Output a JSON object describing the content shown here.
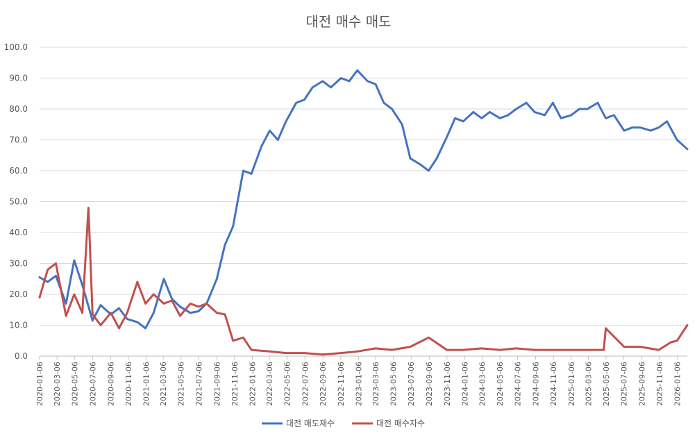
{
  "chart_data": {
    "type": "line",
    "title": "대전 매수 매도",
    "xlabel": "",
    "ylabel": "",
    "ylim": [
      0,
      100
    ],
    "y_ticks": [
      "0.0",
      "10.0",
      "20.0",
      "30.0",
      "40.0",
      "50.0",
      "60.0",
      "70.0",
      "80.0",
      "90.0",
      "100.0"
    ],
    "x_ticks": [
      "2020-01-06",
      "2020-03-06",
      "2020-05-06",
      "2020-07-06",
      "2020-09-06",
      "2020-11-06",
      "2021-01-06",
      "2021-03-06",
      "2021-05-06",
      "2021-07-06",
      "2021-09-06",
      "2021-11-06",
      "2022-01-06",
      "2022-03-06",
      "2022-05-06",
      "2022-07-06",
      "2022-09-06",
      "2022-11-06",
      "2023-01-06",
      "2023-03-06",
      "2023-05-06",
      "2023-07-06",
      "2023-09-06",
      "2023-11-06",
      "2024-01-06",
      "2024-03-06",
      "2024-05-06",
      "2024-07-06",
      "2024-09-06",
      "2024-11-06",
      "2025-01-06",
      "2025-03-06",
      "2025-05-06",
      "2025-07-06",
      "2025-09-06",
      "2025-11-06",
      "2026-01-06"
    ],
    "x_range": [
      "2020-01-06",
      "2026-02-09"
    ],
    "grid": true,
    "legend_position": "bottom",
    "series": [
      {
        "name": "대전 매도재수",
        "color": "#4472c4",
        "x": [
          "2020-01-06",
          "2020-02-03",
          "2020-03-02",
          "2020-04-06",
          "2020-05-04",
          "2020-06-01",
          "2020-07-06",
          "2020-08-03",
          "2020-09-07",
          "2020-10-05",
          "2020-11-02",
          "2020-12-07",
          "2021-01-04",
          "2021-02-01",
          "2021-03-08",
          "2021-04-05",
          "2021-05-03",
          "2021-06-07",
          "2021-07-05",
          "2021-08-02",
          "2021-09-06",
          "2021-10-04",
          "2021-11-01",
          "2021-12-06",
          "2022-01-03",
          "2022-02-07",
          "2022-03-07",
          "2022-04-04",
          "2022-05-02",
          "2022-06-06",
          "2022-07-04",
          "2022-08-01",
          "2022-09-05",
          "2022-10-03",
          "2022-11-07",
          "2022-12-05",
          "2023-01-02",
          "2023-02-06",
          "2023-03-06",
          "2023-04-03",
          "2023-05-01",
          "2023-06-05",
          "2023-07-03",
          "2023-08-07",
          "2023-09-04",
          "2023-10-02",
          "2023-11-06",
          "2023-12-04",
          "2024-01-01",
          "2024-02-05",
          "2024-03-04",
          "2024-04-01",
          "2024-05-06",
          "2024-06-03",
          "2024-07-01",
          "2024-08-05",
          "2024-09-02",
          "2024-10-07",
          "2024-11-04",
          "2024-12-02",
          "2025-01-06",
          "2025-02-03",
          "2025-03-03",
          "2025-04-07",
          "2025-05-05",
          "2025-06-02",
          "2025-07-07",
          "2025-08-04",
          "2025-09-01",
          "2025-10-06",
          "2025-11-03",
          "2025-12-01",
          "2026-01-05",
          "2026-02-09"
        ],
        "values": [
          25.5,
          24.0,
          26.0,
          17.0,
          31.0,
          23.0,
          11.5,
          16.5,
          13.5,
          15.5,
          12.0,
          11.0,
          9.0,
          14.0,
          25.0,
          18.5,
          16.0,
          14.0,
          14.5,
          17.0,
          25.0,
          36.0,
          42.0,
          60.0,
          59.0,
          68.0,
          73.0,
          70.0,
          76.0,
          82.0,
          83.0,
          87.0,
          89.0,
          87.0,
          90.0,
          89.0,
          92.5,
          89.0,
          88.0,
          82.0,
          80.0,
          75.0,
          64.0,
          62.0,
          60.0,
          64.0,
          71.0,
          77.0,
          76.0,
          79.0,
          77.0,
          79.0,
          77.0,
          78.0,
          80.0,
          82.0,
          79.0,
          78.0,
          82.0,
          77.0,
          78.0,
          80.0,
          80.0,
          82.0,
          77.0,
          78.0,
          73.0,
          74.0,
          74.0,
          73.0,
          74.0,
          76.0,
          70.0,
          67.0
        ]
      },
      {
        "name": "대전 매수자수",
        "color": "#c0504d",
        "x": [
          "2020-01-06",
          "2020-02-03",
          "2020-03-02",
          "2020-04-06",
          "2020-05-04",
          "2020-06-01",
          "2020-06-22",
          "2020-07-06",
          "2020-08-03",
          "2020-09-07",
          "2020-10-05",
          "2020-11-02",
          "2020-12-07",
          "2021-01-04",
          "2021-02-01",
          "2021-03-08",
          "2021-04-05",
          "2021-05-03",
          "2021-06-07",
          "2021-07-05",
          "2021-08-02",
          "2021-09-06",
          "2021-10-04",
          "2021-11-01",
          "2021-12-06",
          "2022-01-03",
          "2022-03-07",
          "2022-05-02",
          "2022-07-04",
          "2022-09-05",
          "2022-11-07",
          "2023-01-02",
          "2023-03-06",
          "2023-05-01",
          "2023-07-03",
          "2023-09-04",
          "2023-11-06",
          "2024-01-01",
          "2024-03-04",
          "2024-05-06",
          "2024-07-01",
          "2024-09-02",
          "2024-11-04",
          "2025-01-06",
          "2025-03-03",
          "2025-04-28",
          "2025-05-05",
          "2025-07-07",
          "2025-09-01",
          "2025-11-03",
          "2025-12-15",
          "2026-01-05",
          "2026-02-09"
        ],
        "values": [
          19.0,
          28.0,
          30.0,
          13.0,
          20.0,
          14.0,
          48.0,
          13.5,
          10.0,
          14.0,
          9.0,
          14.0,
          24.0,
          17.0,
          20.0,
          17.0,
          18.0,
          13.0,
          17.0,
          16.0,
          17.0,
          14.0,
          13.5,
          5.0,
          6.0,
          2.0,
          1.5,
          1.0,
          1.0,
          0.5,
          1.0,
          1.5,
          2.5,
          2.0,
          3.0,
          6.0,
          2.0,
          2.0,
          2.5,
          2.0,
          2.5,
          2.0,
          2.0,
          2.0,
          2.0,
          2.0,
          9.0,
          3.0,
          3.0,
          2.0,
          4.5,
          5.0,
          10.0
        ]
      }
    ]
  }
}
